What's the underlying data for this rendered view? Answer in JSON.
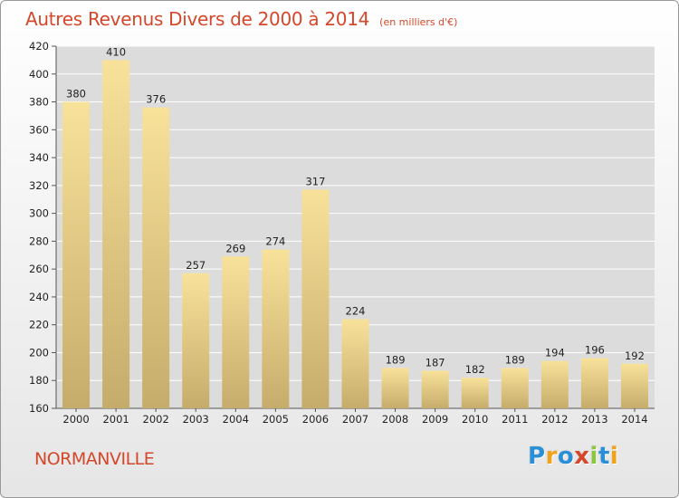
{
  "header": {
    "title": "Autres Revenus Divers de 2000 à 2014",
    "subtitle": "(en milliers d'€)"
  },
  "footer": {
    "place": "NORMANVILLE",
    "logo": {
      "text": "Proxiti",
      "letters": [
        {
          "char": "P",
          "color": "#2a8fd6"
        },
        {
          "char": "r",
          "color": "#f2a21a"
        },
        {
          "char": "o",
          "color": "#2a8fd6"
        },
        {
          "char": "x",
          "color": "#d5472a"
        },
        {
          "char": "i",
          "color": "#8cc63f"
        },
        {
          "char": "t",
          "color": "#2a8fd6"
        },
        {
          "char": "i",
          "color": "#f2a21a"
        }
      ]
    }
  },
  "colors": {
    "accent": "#d5472a",
    "bar_top": "#f8e29a",
    "bar_bottom": "#c6ac6b",
    "plot_bg": "#dcdcdc",
    "grid": "#ffffff"
  },
  "chart_data": {
    "type": "bar",
    "title": "Autres Revenus Divers de 2000 à 2014",
    "subtitle": "(en milliers d'€)",
    "xlabel": "",
    "ylabel": "",
    "categories": [
      "2000",
      "2001",
      "2002",
      "2003",
      "2004",
      "2005",
      "2006",
      "2007",
      "2008",
      "2009",
      "2010",
      "2011",
      "2012",
      "2013",
      "2014"
    ],
    "values": [
      380,
      410,
      376,
      257,
      269,
      274,
      317,
      224,
      189,
      187,
      182,
      189,
      194,
      196,
      192
    ],
    "ylim": [
      160,
      420
    ],
    "yticks": [
      160,
      180,
      200,
      220,
      240,
      260,
      280,
      300,
      320,
      340,
      360,
      380,
      400,
      420
    ],
    "grid": true,
    "data_labels": true
  }
}
